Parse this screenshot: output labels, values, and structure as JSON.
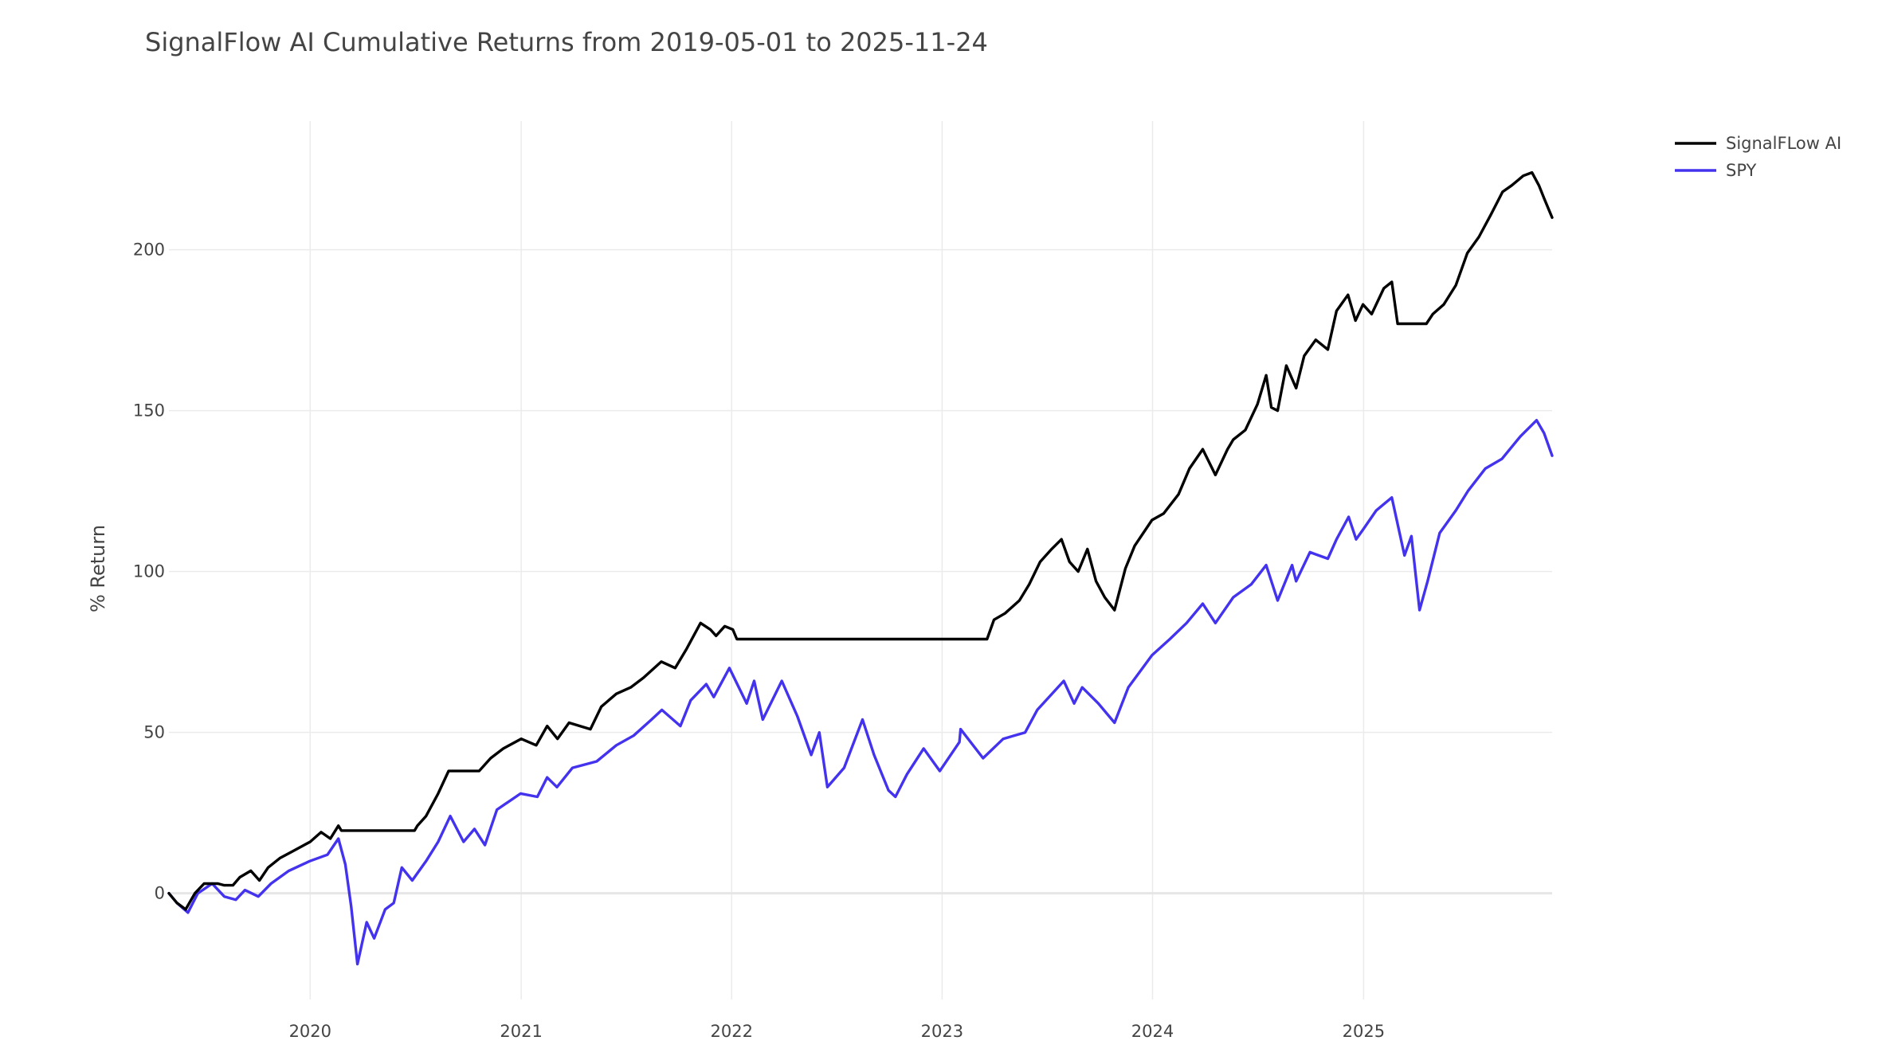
{
  "chart_data": {
    "type": "line",
    "title": "SignalFlow AI Cumulative Returns from 2019-05-01 to 2025-11-24",
    "xlabel": "",
    "ylabel": "% Return",
    "x_range": [
      "2019-05-01",
      "2025-11-24"
    ],
    "ylim": [
      -33,
      240
    ],
    "x_ticks": [
      {
        "date": "2020-01-01",
        "label": "2020"
      },
      {
        "date": "2021-01-01",
        "label": "2021"
      },
      {
        "date": "2022-01-01",
        "label": "2022"
      },
      {
        "date": "2023-01-01",
        "label": "2023"
      },
      {
        "date": "2024-01-01",
        "label": "2024"
      },
      {
        "date": "2025-01-01",
        "label": "2025"
      }
    ],
    "y_ticks": [
      {
        "value": 0,
        "label": "0"
      },
      {
        "value": 50,
        "label": "50"
      },
      {
        "value": 100,
        "label": "100"
      },
      {
        "value": 150,
        "label": "150"
      },
      {
        "value": 200,
        "label": "200"
      }
    ],
    "grid": true,
    "legend_position": "top-right",
    "series": [
      {
        "name": "SignalFLow AI",
        "color": "#000000",
        "points": [
          [
            "2019-05-01",
            0
          ],
          [
            "2019-05-15",
            -3
          ],
          [
            "2019-05-30",
            -5
          ],
          [
            "2019-06-15",
            0
          ],
          [
            "2019-07-01",
            3
          ],
          [
            "2019-07-25",
            3
          ],
          [
            "2019-08-05",
            2.5
          ],
          [
            "2019-08-20",
            2.5
          ],
          [
            "2019-09-01",
            5
          ],
          [
            "2019-09-20",
            7
          ],
          [
            "2019-10-05",
            4
          ],
          [
            "2019-10-20",
            8
          ],
          [
            "2019-11-10",
            11
          ],
          [
            "2019-12-01",
            13
          ],
          [
            "2020-01-01",
            16
          ],
          [
            "2020-01-20",
            19
          ],
          [
            "2020-02-05",
            17
          ],
          [
            "2020-02-19",
            21
          ],
          [
            "2020-02-24",
            19.5
          ],
          [
            "2020-04-15",
            19.5
          ],
          [
            "2020-06-30",
            19.5
          ],
          [
            "2020-07-05",
            21
          ],
          [
            "2020-07-20",
            24
          ],
          [
            "2020-08-10",
            31
          ],
          [
            "2020-08-28",
            38
          ],
          [
            "2020-09-15",
            38
          ],
          [
            "2020-10-20",
            38
          ],
          [
            "2020-11-09",
            42
          ],
          [
            "2020-12-01",
            45
          ],
          [
            "2021-01-01",
            48
          ],
          [
            "2021-01-27",
            46
          ],
          [
            "2021-02-15",
            52
          ],
          [
            "2021-03-05",
            48
          ],
          [
            "2021-03-25",
            53
          ],
          [
            "2021-05-01",
            51
          ],
          [
            "2021-05-20",
            58
          ],
          [
            "2021-06-15",
            62
          ],
          [
            "2021-07-10",
            64
          ],
          [
            "2021-08-01",
            67
          ],
          [
            "2021-09-01",
            72
          ],
          [
            "2021-09-25",
            70
          ],
          [
            "2021-10-15",
            76
          ],
          [
            "2021-11-08",
            84
          ],
          [
            "2021-11-25",
            82
          ],
          [
            "2021-12-05",
            80
          ],
          [
            "2021-12-20",
            83
          ],
          [
            "2022-01-03",
            82
          ],
          [
            "2022-01-10",
            79
          ],
          [
            "2022-06-01",
            79
          ],
          [
            "2023-03-20",
            79
          ],
          [
            "2023-04-01",
            85
          ],
          [
            "2023-04-20",
            87
          ],
          [
            "2023-05-15",
            91
          ],
          [
            "2023-06-01",
            96
          ],
          [
            "2023-06-20",
            103
          ],
          [
            "2023-07-10",
            107
          ],
          [
            "2023-07-27",
            110
          ],
          [
            "2023-08-10",
            103
          ],
          [
            "2023-08-25",
            100
          ],
          [
            "2023-09-10",
            107
          ],
          [
            "2023-09-25",
            97
          ],
          [
            "2023-10-10",
            92
          ],
          [
            "2023-10-27",
            88
          ],
          [
            "2023-11-15",
            101
          ],
          [
            "2023-12-01",
            108
          ],
          [
            "2023-12-31",
            116
          ],
          [
            "2024-01-20",
            118
          ],
          [
            "2024-02-15",
            124
          ],
          [
            "2024-03-05",
            132
          ],
          [
            "2024-03-28",
            138
          ],
          [
            "2024-04-19",
            130
          ],
          [
            "2024-05-10",
            138
          ],
          [
            "2024-05-20",
            141
          ],
          [
            "2024-06-10",
            144
          ],
          [
            "2024-07-01",
            152
          ],
          [
            "2024-07-16",
            161
          ],
          [
            "2024-07-25",
            151
          ],
          [
            "2024-08-05",
            150
          ],
          [
            "2024-08-20",
            164
          ],
          [
            "2024-09-06",
            157
          ],
          [
            "2024-09-20",
            167
          ],
          [
            "2024-10-10",
            172
          ],
          [
            "2024-10-31",
            169
          ],
          [
            "2024-11-15",
            181
          ],
          [
            "2024-12-05",
            186
          ],
          [
            "2024-12-18",
            178
          ],
          [
            "2024-12-31",
            183
          ],
          [
            "2025-01-15",
            180
          ],
          [
            "2025-02-05",
            188
          ],
          [
            "2025-02-19",
            190
          ],
          [
            "2025-03-01",
            177
          ],
          [
            "2025-03-20",
            177
          ],
          [
            "2025-04-20",
            177
          ],
          [
            "2025-05-01",
            180
          ],
          [
            "2025-05-20",
            183
          ],
          [
            "2025-06-10",
            189
          ],
          [
            "2025-06-30",
            199
          ],
          [
            "2025-07-20",
            204
          ],
          [
            "2025-08-10",
            211
          ],
          [
            "2025-08-30",
            218
          ],
          [
            "2025-09-15",
            220
          ],
          [
            "2025-10-05",
            223
          ],
          [
            "2025-10-20",
            224
          ],
          [
            "2025-11-01",
            220
          ],
          [
            "2025-11-10",
            216
          ],
          [
            "2025-11-24",
            210
          ]
        ]
      },
      {
        "name": "SPY",
        "color": "#4433ee",
        "points": [
          [
            "2019-05-01",
            0
          ],
          [
            "2019-05-15",
            -3
          ],
          [
            "2019-06-03",
            -6
          ],
          [
            "2019-06-20",
            0
          ],
          [
            "2019-07-15",
            3
          ],
          [
            "2019-08-05",
            -1
          ],
          [
            "2019-08-25",
            -2
          ],
          [
            "2019-09-10",
            1
          ],
          [
            "2019-10-03",
            -1
          ],
          [
            "2019-10-25",
            3
          ],
          [
            "2019-11-25",
            7
          ],
          [
            "2019-12-31",
            10
          ],
          [
            "2020-01-31",
            12
          ],
          [
            "2020-02-19",
            17
          ],
          [
            "2020-03-02",
            9
          ],
          [
            "2020-03-12",
            -4
          ],
          [
            "2020-03-23",
            -22
          ],
          [
            "2020-04-08",
            -9
          ],
          [
            "2020-04-21",
            -14
          ],
          [
            "2020-05-10",
            -5
          ],
          [
            "2020-05-25",
            -3
          ],
          [
            "2020-06-08",
            8
          ],
          [
            "2020-06-26",
            4
          ],
          [
            "2020-07-20",
            10
          ],
          [
            "2020-08-10",
            16
          ],
          [
            "2020-08-31",
            24
          ],
          [
            "2020-09-23",
            16
          ],
          [
            "2020-10-12",
            20
          ],
          [
            "2020-10-30",
            15
          ],
          [
            "2020-11-20",
            26
          ],
          [
            "2020-12-31",
            31
          ],
          [
            "2021-01-29",
            30
          ],
          [
            "2021-02-15",
            36
          ],
          [
            "2021-03-04",
            33
          ],
          [
            "2021-03-31",
            39
          ],
          [
            "2021-05-12",
            41
          ],
          [
            "2021-06-15",
            46
          ],
          [
            "2021-07-15",
            49
          ],
          [
            "2021-08-15",
            54
          ],
          [
            "2021-09-02",
            57
          ],
          [
            "2021-10-04",
            52
          ],
          [
            "2021-10-22",
            60
          ],
          [
            "2021-11-18",
            65
          ],
          [
            "2021-12-01",
            61
          ],
          [
            "2021-12-28",
            70
          ],
          [
            "2022-01-27",
            59
          ],
          [
            "2022-02-09",
            66
          ],
          [
            "2022-02-24",
            54
          ],
          [
            "2022-03-29",
            66
          ],
          [
            "2022-04-25",
            55
          ],
          [
            "2022-05-19",
            43
          ],
          [
            "2022-06-02",
            50
          ],
          [
            "2022-06-16",
            33
          ],
          [
            "2022-07-15",
            39
          ],
          [
            "2022-08-16",
            54
          ],
          [
            "2022-09-05",
            43
          ],
          [
            "2022-09-30",
            32
          ],
          [
            "2022-10-12",
            30
          ],
          [
            "2022-11-01",
            37
          ],
          [
            "2022-11-30",
            45
          ],
          [
            "2022-12-28",
            38
          ],
          [
            "2023-01-31",
            47
          ],
          [
            "2023-02-02",
            51
          ],
          [
            "2023-03-13",
            42
          ],
          [
            "2023-04-17",
            48
          ],
          [
            "2023-05-25",
            50
          ],
          [
            "2023-06-15",
            57
          ],
          [
            "2023-07-31",
            66
          ],
          [
            "2023-08-18",
            59
          ],
          [
            "2023-09-01",
            64
          ],
          [
            "2023-09-29",
            59
          ],
          [
            "2023-10-27",
            53
          ],
          [
            "2023-11-20",
            64
          ],
          [
            "2023-12-31",
            74
          ],
          [
            "2024-01-31",
            79
          ],
          [
            "2024-02-29",
            84
          ],
          [
            "2024-03-28",
            90
          ],
          [
            "2024-04-19",
            84
          ],
          [
            "2024-05-20",
            92
          ],
          [
            "2024-06-20",
            96
          ],
          [
            "2024-07-16",
            102
          ],
          [
            "2024-08-05",
            91
          ],
          [
            "2024-08-30",
            102
          ],
          [
            "2024-09-06",
            97
          ],
          [
            "2024-09-30",
            106
          ],
          [
            "2024-10-31",
            104
          ],
          [
            "2024-11-15",
            110
          ],
          [
            "2024-12-06",
            117
          ],
          [
            "2024-12-19",
            110
          ],
          [
            "2024-12-31",
            113
          ],
          [
            "2025-01-23",
            119
          ],
          [
            "2025-02-19",
            123
          ],
          [
            "2025-03-13",
            105
          ],
          [
            "2025-03-25",
            111
          ],
          [
            "2025-04-08",
            88
          ],
          [
            "2025-04-22",
            97
          ],
          [
            "2025-05-13",
            112
          ],
          [
            "2025-06-10",
            119
          ],
          [
            "2025-07-01",
            125
          ],
          [
            "2025-07-31",
            132
          ],
          [
            "2025-08-29",
            135
          ],
          [
            "2025-09-30",
            142
          ],
          [
            "2025-10-28",
            147
          ],
          [
            "2025-11-10",
            143
          ],
          [
            "2025-11-24",
            136
          ]
        ]
      }
    ]
  }
}
